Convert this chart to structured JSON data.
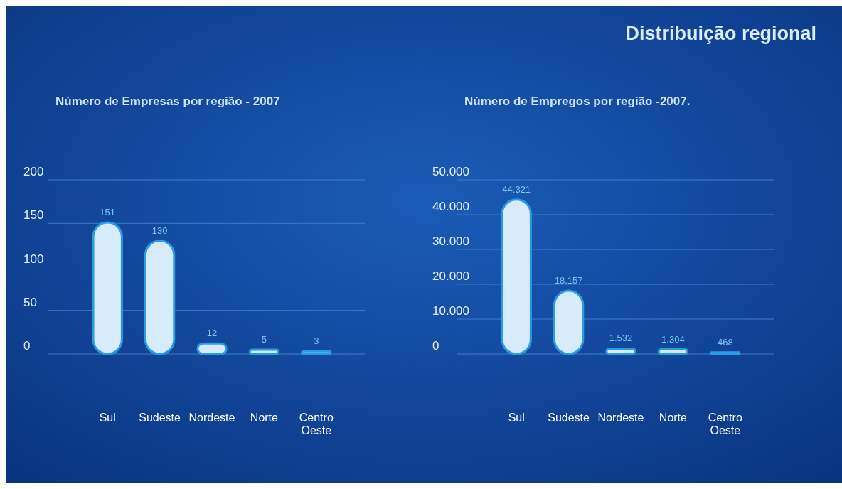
{
  "chart_data": [
    {
      "type": "bar",
      "title": "Número de Empresas por região - 2007",
      "categories": [
        "Sul",
        "Sudeste",
        "Nordeste",
        "Norte",
        "Centro Oeste"
      ],
      "values": [
        151,
        130,
        12,
        5,
        3
      ],
      "color": "#d6ebfc",
      "ylim": [
        0,
        200
      ],
      "yticks": [
        0,
        50,
        100,
        150,
        200
      ],
      "grid": "y",
      "data_labels": true
    },
    {
      "type": "bar",
      "title": "Número de Empregos por região -2007.",
      "subtitle": "Distribuição regional",
      "categories": [
        "Sul",
        "Sudeste",
        "Nordeste",
        "Norte",
        "Centro Oeste"
      ],
      "values": [
        44321,
        18157,
        1532,
        1304,
        468
      ],
      "value_labels": [
        "44.321",
        "18.157",
        "1.532",
        "1.304",
        "468"
      ],
      "color": "#d6ebfc",
      "ylim": [
        0,
        50000
      ],
      "yticks": [
        {
          "value": 0,
          "label": "0"
        },
        {
          "value": 10000,
          "label": "10.000"
        },
        {
          "value": 20000,
          "label": "20.000"
        },
        {
          "value": 30000,
          "label": "30.000"
        },
        {
          "value": 40000,
          "label": "40.000"
        },
        {
          "value": 50000,
          "label": "50.000"
        }
      ],
      "grid": "y"
    }
  ]
}
